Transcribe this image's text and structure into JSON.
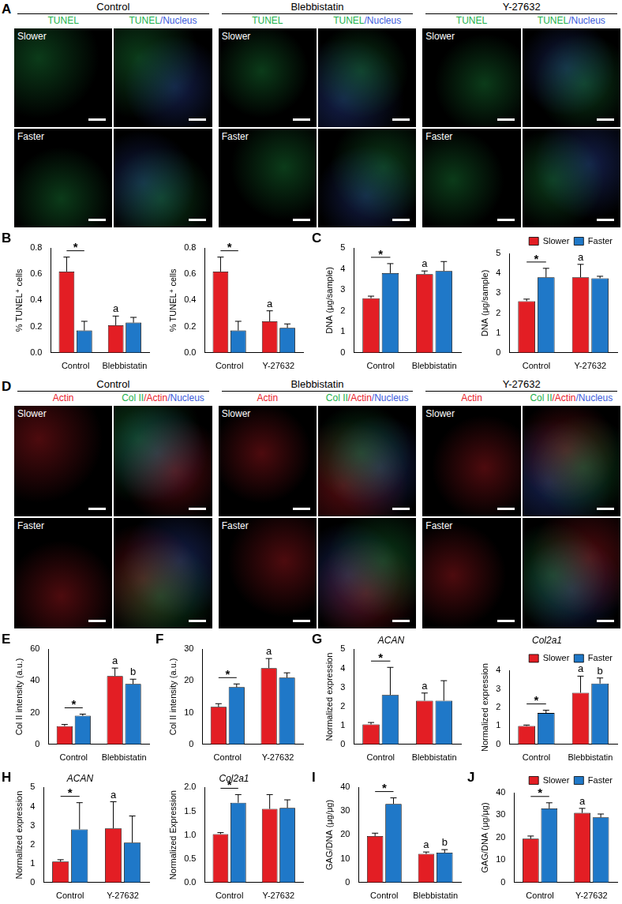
{
  "image_figures": [
    {
      "panel": "A",
      "groups": [
        "Control",
        "Blebbistatin",
        "Y-27632"
      ],
      "columns": [
        [
          {
            "text": "TUNEL",
            "color": "#22b14c"
          }
        ],
        [
          {
            "text": "TUNEL",
            "color": "#22b14c"
          },
          {
            "text": "/Nucleus",
            "color": "#3b5bdb"
          }
        ]
      ],
      "rows": [
        "Slower",
        "Faster"
      ]
    },
    {
      "panel": "D",
      "groups": [
        "Control",
        "Blebbistatin",
        "Y-27632"
      ],
      "columns": [
        [
          {
            "text": "Actin",
            "color": "#e8202a"
          }
        ],
        [
          {
            "text": "Col II",
            "color": "#22b14c"
          },
          {
            "text": "/Actin",
            "color": "#e8202a"
          },
          {
            "text": "/Nucleus",
            "color": "#3b5bdb"
          }
        ]
      ],
      "rows": [
        "Slower",
        "Faster"
      ]
    }
  ],
  "chart_data": [
    {
      "panel": "B",
      "type": "bar",
      "categories": [
        "Control",
        "Blebbistatin"
      ],
      "series": [
        {
          "name": "Slower",
          "color": "#e31e24",
          "values": [
            0.62,
            0.21
          ],
          "errors": [
            0.11,
            0.07
          ]
        },
        {
          "name": "Faster",
          "color": "#1f78c8",
          "values": [
            0.17,
            0.23
          ],
          "errors": [
            0.07,
            0.04
          ]
        }
      ],
      "ylim": [
        0,
        0.8
      ],
      "yticks": [
        {
          "value": 0,
          "label": "0.0"
        },
        {
          "value": 0.2,
          "label": "0.2"
        },
        {
          "value": 0.4,
          "label": "0.4"
        },
        {
          "value": 0.6,
          "label": "0.6"
        },
        {
          "value": 0.8,
          "label": "0.8"
        }
      ],
      "y_label": "% TUNEL⁺ cells",
      "grid": false,
      "significance": [
        {
          "text": "*",
          "category": "Control"
        }
      ],
      "letters": [
        {
          "text": "a",
          "category": "Blebbistatin",
          "series": "Slower"
        }
      ]
    },
    {
      "type": "bar",
      "categories": [
        "Control",
        "Y-27632"
      ],
      "series": [
        {
          "name": "Slower",
          "color": "#e31e24",
          "values": [
            0.62,
            0.24
          ],
          "errors": [
            0.11,
            0.08
          ]
        },
        {
          "name": "Faster",
          "color": "#1f78c8",
          "values": [
            0.17,
            0.19
          ],
          "errors": [
            0.07,
            0.03
          ]
        }
      ],
      "ylim": [
        0,
        0.8
      ],
      "yticks": [
        {
          "value": 0,
          "label": "0.0"
        },
        {
          "value": 0.2,
          "label": "0.2"
        },
        {
          "value": 0.4,
          "label": "0.4"
        },
        {
          "value": 0.6,
          "label": "0.6"
        },
        {
          "value": 0.8,
          "label": "0.8"
        }
      ],
      "y_label": "% TUNEL⁺ cells",
      "grid": false,
      "significance": [
        {
          "text": "*",
          "category": "Control"
        }
      ],
      "letters": [
        {
          "text": "a",
          "category": "Y-27632",
          "series": "Slower"
        }
      ]
    },
    {
      "panel": "C",
      "type": "bar",
      "categories": [
        "Control",
        "Blebbistatin"
      ],
      "series": [
        {
          "name": "Slower",
          "color": "#e31e24",
          "values": [
            2.6,
            3.75
          ],
          "errors": [
            0.1,
            0.15
          ]
        },
        {
          "name": "Faster",
          "color": "#1f78c8",
          "values": [
            3.8,
            3.9
          ],
          "errors": [
            0.45,
            0.45
          ]
        }
      ],
      "ylim": [
        0,
        5
      ],
      "yticks": [
        0,
        1,
        2,
        3,
        4,
        5
      ],
      "y_label": "DNA (μg/sample)",
      "grid": false,
      "significance": [
        {
          "text": "*",
          "category": "Control"
        }
      ],
      "letters": [
        {
          "text": "a",
          "category": "Blebbistatin",
          "series": "Slower"
        }
      ]
    },
    {
      "type": "bar",
      "categories": [
        "Control",
        "Y-27632"
      ],
      "series": [
        {
          "name": "Slower",
          "color": "#e31e24",
          "values": [
            2.6,
            3.8
          ],
          "errors": [
            0.1,
            0.65
          ]
        },
        {
          "name": "Faster",
          "color": "#1f78c8",
          "values": [
            3.8,
            3.75
          ],
          "errors": [
            0.45,
            0.1
          ]
        }
      ],
      "ylim": [
        0,
        5
      ],
      "yticks": [
        0,
        1,
        2,
        3,
        4,
        5
      ],
      "y_label": "DNA (μg/sample)",
      "grid": false,
      "legend": "upper right",
      "significance": [
        {
          "text": "*",
          "category": "Control"
        }
      ],
      "letters": [
        {
          "text": "a",
          "category": "Y-27632",
          "series": "Slower"
        }
      ]
    },
    {
      "panel": "E",
      "type": "bar",
      "categories": [
        "Control",
        "Blebbistatin"
      ],
      "series": [
        {
          "name": "Slower",
          "color": "#e31e24",
          "values": [
            11.5,
            43
          ],
          "errors": [
            1,
            5
          ]
        },
        {
          "name": "Faster",
          "color": "#1f78c8",
          "values": [
            18,
            38
          ],
          "errors": [
            1,
            3
          ]
        }
      ],
      "ylim": [
        0,
        60
      ],
      "yticks": [
        0,
        20,
        40,
        60
      ],
      "y_label": "Col II intensity (a.u.)",
      "grid": false,
      "significance": [
        {
          "text": "*",
          "category": "Control"
        }
      ],
      "letters": [
        {
          "text": "a",
          "category": "Blebbistatin",
          "series": "Slower"
        },
        {
          "text": "b",
          "category": "Blebbistatin",
          "series": "Faster"
        }
      ]
    },
    {
      "panel": "F",
      "type": "bar",
      "categories": [
        "Control",
        "Y-27632"
      ],
      "series": [
        {
          "name": "Slower",
          "color": "#e31e24",
          "values": [
            11.8,
            24
          ],
          "errors": [
            1,
            3
          ]
        },
        {
          "name": "Faster",
          "color": "#1f78c8",
          "values": [
            18,
            21
          ],
          "errors": [
            1,
            1.5
          ]
        }
      ],
      "ylim": [
        0,
        30
      ],
      "yticks": [
        0,
        10,
        20,
        30
      ],
      "y_label": "Col II intensity (a.u.)",
      "grid": false,
      "significance": [
        {
          "text": "*",
          "category": "Control"
        }
      ],
      "letters": [
        {
          "text": "a",
          "category": "Y-27632",
          "series": "Slower"
        }
      ]
    },
    {
      "panel": "G",
      "type": "bar",
      "title": "ACAN",
      "categories": [
        "Control",
        "Blebbistatin"
      ],
      "series": [
        {
          "name": "Slower",
          "color": "#e31e24",
          "values": [
            1.05,
            2.3
          ],
          "errors": [
            0.1,
            0.4
          ]
        },
        {
          "name": "Faster",
          "color": "#1f78c8",
          "values": [
            2.6,
            2.3
          ],
          "errors": [
            1.45,
            1.05
          ]
        }
      ],
      "ylim": [
        0,
        5
      ],
      "yticks": [
        0,
        1,
        2,
        3,
        4,
        5
      ],
      "y_label": "Normalized expression",
      "grid": false,
      "significance": [
        {
          "text": "*",
          "category": "Control"
        }
      ],
      "letters": [
        {
          "text": "a",
          "category": "Blebbistatin",
          "series": "Slower"
        }
      ]
    },
    {
      "type": "bar",
      "title": "Col2a1",
      "categories": [
        "Control",
        "Blebbistatin"
      ],
      "series": [
        {
          "name": "Slower",
          "color": "#e31e24",
          "values": [
            1.0,
            2.8
          ],
          "errors": [
            0.05,
            0.9
          ]
        },
        {
          "name": "Faster",
          "color": "#1f78c8",
          "values": [
            1.7,
            3.3
          ],
          "errors": [
            0.15,
            0.3
          ]
        }
      ],
      "ylim": [
        0,
        4
      ],
      "yticks": [
        0,
        1,
        2,
        3,
        4
      ],
      "y_label": "Normalized expression",
      "grid": false,
      "legend": "upper right",
      "significance": [
        {
          "text": "*",
          "category": "Control"
        }
      ],
      "letters": [
        {
          "text": "a",
          "category": "Blebbistatin",
          "series": "Slower"
        },
        {
          "text": "b",
          "category": "Blebbistatin",
          "series": "Faster"
        }
      ]
    },
    {
      "panel": "H",
      "type": "bar",
      "title": "ACAN",
      "categories": [
        "Control",
        "Y-27632"
      ],
      "series": [
        {
          "name": "Slower",
          "color": "#e31e24",
          "values": [
            1.1,
            2.85
          ],
          "errors": [
            0.1,
            1.4
          ]
        },
        {
          "name": "Faster",
          "color": "#1f78c8",
          "values": [
            2.8,
            2.1
          ],
          "errors": [
            1.4,
            1.4
          ]
        }
      ],
      "ylim": [
        0,
        5
      ],
      "yticks": [
        0,
        1,
        2,
        3,
        4,
        5
      ],
      "y_label": "Normalized expression",
      "grid": false,
      "significance": [
        {
          "text": "*",
          "category": "Control"
        }
      ],
      "letters": [
        {
          "text": "a",
          "category": "Y-27632",
          "series": "Slower"
        }
      ]
    },
    {
      "type": "bar",
      "title": "Col2a1",
      "categories": [
        "Control",
        "Y-27632"
      ],
      "series": [
        {
          "name": "Slower",
          "color": "#e31e24",
          "values": [
            1.02,
            1.55
          ],
          "errors": [
            0.03,
            0.3
          ]
        },
        {
          "name": "Faster",
          "color": "#1f78c8",
          "values": [
            1.68,
            1.57
          ],
          "errors": [
            0.17,
            0.17
          ]
        }
      ],
      "ylim": [
        0,
        2
      ],
      "yticks": [
        {
          "value": 0,
          "label": "0.0"
        },
        {
          "value": 0.5,
          "label": "0.5"
        },
        {
          "value": 1,
          "label": "1.0"
        },
        {
          "value": 1.5,
          "label": "1.5"
        },
        {
          "value": 2,
          "label": "2.0"
        }
      ],
      "y_label": "Normalized Expression",
      "grid": false,
      "significance": [
        {
          "text": "*",
          "category": "Control"
        }
      ],
      "letters": []
    },
    {
      "panel": "I",
      "type": "bar",
      "categories": [
        "Control",
        "Blebbistatin"
      ],
      "series": [
        {
          "name": "Slower",
          "color": "#e31e24",
          "values": [
            19.5,
            12
          ],
          "errors": [
            1.2,
            0.8
          ]
        },
        {
          "name": "Faster",
          "color": "#1f78c8",
          "values": [
            33,
            12.5
          ],
          "errors": [
            2.5,
            1.3
          ]
        }
      ],
      "ylim": [
        0,
        40
      ],
      "yticks": [
        0,
        10,
        20,
        30,
        40
      ],
      "y_label": "GAG/DNA (μg/μg)",
      "grid": false,
      "significance": [
        {
          "text": "*",
          "category": "Control"
        }
      ],
      "letters": [
        {
          "text": "a",
          "category": "Blebbistatin",
          "series": "Slower"
        },
        {
          "text": "b",
          "category": "Blebbistatin",
          "series": "Faster"
        }
      ]
    },
    {
      "panel": "J",
      "type": "bar",
      "categories": [
        "Control",
        "Y-27632"
      ],
      "series": [
        {
          "name": "Slower",
          "color": "#e31e24",
          "values": [
            19.5,
            31
          ],
          "errors": [
            1.2,
            2
          ]
        },
        {
          "name": "Faster",
          "color": "#1f78c8",
          "values": [
            33,
            29
          ],
          "errors": [
            2.5,
            1.5
          ]
        }
      ],
      "ylim": [
        0,
        40
      ],
      "yticks": [
        0,
        10,
        20,
        30,
        40
      ],
      "y_label": "GAG/DNA (μg/μg)",
      "grid": false,
      "legend": "upper right",
      "significance": [
        {
          "text": "*",
          "category": "Control"
        }
      ],
      "letters": [
        {
          "text": "a",
          "category": "Y-27632",
          "series": "Slower"
        }
      ]
    }
  ]
}
